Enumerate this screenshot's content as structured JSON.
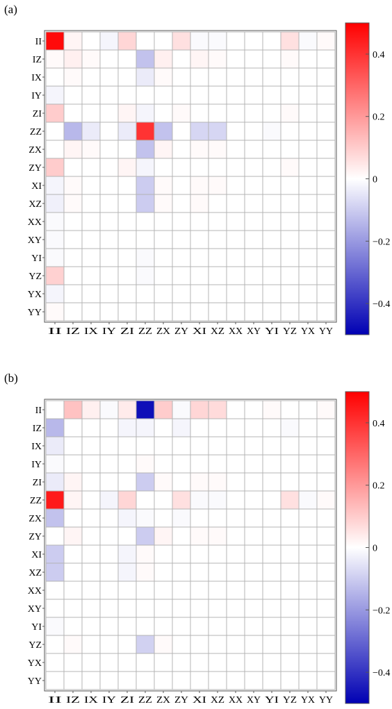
{
  "chart_data": [
    {
      "type": "heatmap",
      "panel_label": "(a)",
      "row_labels": [
        "II",
        "IZ",
        "IX",
        "IY",
        "ZI",
        "ZZ",
        "ZX",
        "ZY",
        "XI",
        "XZ",
        "XX",
        "XY",
        "YI",
        "YZ",
        "YX",
        "YY"
      ],
      "col_labels": [
        "II",
        "IZ",
        "IX",
        "IY",
        "ZI",
        "ZZ",
        "ZX",
        "ZY",
        "XI",
        "XZ",
        "XX",
        "XY",
        "YI",
        "YZ",
        "YX",
        "YY"
      ],
      "values": [
        [
          0.48,
          0.02,
          0.0,
          -0.02,
          0.08,
          0.0,
          0.0,
          0.06,
          -0.01,
          -0.01,
          0.0,
          0.0,
          0.0,
          0.06,
          -0.01,
          0.01
        ],
        [
          0.01,
          0.03,
          0.01,
          0.0,
          0.0,
          -0.12,
          0.03,
          0.0,
          0.02,
          0.01,
          0.0,
          0.0,
          0.0,
          0.01,
          0.0,
          0.0
        ],
        [
          0.0,
          0.01,
          0.0,
          0.0,
          0.0,
          -0.04,
          0.01,
          0.0,
          0.0,
          0.0,
          0.0,
          0.0,
          0.0,
          0.0,
          0.0,
          0.0
        ],
        [
          -0.02,
          0.0,
          0.0,
          0.0,
          0.0,
          0.0,
          0.0,
          0.0,
          0.0,
          0.0,
          0.0,
          0.0,
          0.0,
          0.0,
          0.0,
          0.0
        ],
        [
          0.1,
          0.0,
          0.0,
          0.0,
          0.02,
          -0.02,
          0.0,
          0.01,
          0.0,
          0.0,
          0.0,
          0.0,
          0.0,
          0.01,
          0.0,
          0.0
        ],
        [
          0.0,
          -0.14,
          -0.04,
          0.0,
          -0.04,
          0.4,
          -0.12,
          0.0,
          -0.08,
          -0.08,
          0.0,
          0.0,
          -0.01,
          0.0,
          0.0,
          0.0
        ],
        [
          0.0,
          0.02,
          0.01,
          0.0,
          0.0,
          -0.12,
          0.02,
          0.0,
          0.01,
          0.01,
          0.0,
          0.0,
          0.0,
          0.0,
          0.0,
          0.0
        ],
        [
          0.1,
          0.0,
          0.0,
          0.0,
          0.02,
          -0.02,
          0.0,
          0.0,
          0.0,
          0.0,
          0.0,
          0.0,
          0.0,
          0.01,
          0.0,
          0.0
        ],
        [
          -0.02,
          0.01,
          0.0,
          0.0,
          0.0,
          -0.1,
          0.01,
          0.0,
          0.01,
          0.01,
          0.0,
          0.0,
          0.0,
          0.0,
          0.0,
          0.0
        ],
        [
          -0.03,
          0.01,
          0.0,
          0.0,
          0.0,
          -0.1,
          0.01,
          0.0,
          0.01,
          0.0,
          0.0,
          0.0,
          0.0,
          0.0,
          0.0,
          0.0
        ],
        [
          -0.01,
          0.0,
          0.0,
          0.0,
          0.0,
          0.0,
          0.0,
          0.0,
          0.0,
          0.0,
          0.0,
          0.0,
          0.0,
          0.0,
          0.0,
          0.0
        ],
        [
          -0.01,
          0.0,
          0.0,
          0.0,
          0.0,
          0.0,
          0.0,
          0.0,
          0.0,
          0.0,
          0.0,
          0.0,
          0.0,
          0.0,
          0.0,
          0.0
        ],
        [
          -0.01,
          0.0,
          0.0,
          0.0,
          0.0,
          -0.01,
          0.0,
          0.0,
          0.0,
          0.0,
          0.0,
          0.0,
          0.0,
          0.0,
          0.0,
          0.0
        ],
        [
          0.09,
          0.0,
          0.0,
          0.0,
          0.0,
          -0.01,
          0.0,
          0.0,
          0.0,
          0.0,
          0.0,
          0.0,
          0.0,
          0.0,
          0.0,
          0.0
        ],
        [
          -0.02,
          0.0,
          0.0,
          0.0,
          0.0,
          0.0,
          0.0,
          0.0,
          0.0,
          0.0,
          0.0,
          0.0,
          0.0,
          0.0,
          0.0,
          0.0
        ],
        [
          0.01,
          0.0,
          0.0,
          0.0,
          0.0,
          0.0,
          0.0,
          0.0,
          0.0,
          0.0,
          0.0,
          0.0,
          0.0,
          0.0,
          0.0,
          0.0
        ]
      ],
      "colorbar": {
        "range": [
          -0.5,
          0.5
        ],
        "ticks": [
          0.4,
          0.2,
          0,
          -0.2,
          -0.4
        ],
        "tick_labels": [
          "0.4",
          "0.2",
          "0",
          "−0.2",
          "−0.4"
        ]
      },
      "colormap": {
        "min": "#0000b3",
        "mid": "#ffffff",
        "max": "#ff0000"
      },
      "grid": true
    },
    {
      "type": "heatmap",
      "panel_label": "(b)",
      "row_labels": [
        "II",
        "IZ",
        "IX",
        "IY",
        "ZI",
        "ZZ",
        "ZX",
        "ZY",
        "XI",
        "XZ",
        "XX",
        "XY",
        "YI",
        "YZ",
        "YX",
        "YY"
      ],
      "col_labels": [
        "II",
        "IZ",
        "IX",
        "IY",
        "ZI",
        "ZZ",
        "ZX",
        "ZY",
        "XI",
        "XZ",
        "XX",
        "XY",
        "YI",
        "YZ",
        "YX",
        "YY"
      ],
      "values": [
        [
          0.0,
          0.12,
          0.03,
          -0.01,
          0.04,
          -0.47,
          0.1,
          -0.01,
          0.08,
          0.07,
          0.0,
          0.0,
          0.01,
          0.0,
          0.0,
          0.01
        ],
        [
          -0.14,
          0.0,
          0.0,
          0.0,
          -0.02,
          -0.02,
          0.0,
          -0.02,
          0.0,
          0.0,
          0.0,
          0.0,
          0.0,
          -0.01,
          0.0,
          0.0
        ],
        [
          -0.04,
          0.0,
          0.0,
          0.0,
          0.0,
          0.0,
          0.0,
          0.0,
          0.0,
          0.0,
          0.0,
          0.0,
          0.0,
          0.0,
          0.0,
          0.0
        ],
        [
          -0.01,
          0.0,
          0.0,
          0.0,
          0.0,
          0.01,
          0.0,
          0.0,
          0.0,
          0.0,
          0.0,
          0.0,
          0.0,
          0.0,
          0.0,
          0.0
        ],
        [
          -0.04,
          0.02,
          0.0,
          0.0,
          0.0,
          -0.1,
          0.01,
          0.0,
          0.01,
          0.01,
          0.0,
          0.0,
          0.0,
          0.0,
          0.0,
          0.0
        ],
        [
          0.45,
          0.02,
          0.0,
          -0.02,
          0.08,
          0.0,
          0.0,
          0.06,
          -0.01,
          -0.01,
          0.0,
          0.0,
          0.0,
          0.06,
          -0.01,
          0.01
        ],
        [
          -0.12,
          0.0,
          0.0,
          0.0,
          -0.02,
          -0.01,
          0.0,
          -0.01,
          0.0,
          0.0,
          0.0,
          0.0,
          0.0,
          0.0,
          0.0,
          0.0
        ],
        [
          0.0,
          0.02,
          0.0,
          0.0,
          0.0,
          -0.1,
          0.02,
          0.0,
          0.01,
          0.01,
          0.0,
          0.0,
          0.0,
          0.0,
          0.0,
          0.0
        ],
        [
          -0.1,
          0.0,
          0.0,
          0.0,
          -0.02,
          0.01,
          0.0,
          0.0,
          0.0,
          0.0,
          0.0,
          0.0,
          0.0,
          0.0,
          0.0,
          0.0
        ],
        [
          -0.1,
          0.0,
          0.0,
          0.0,
          -0.02,
          0.01,
          0.0,
          0.0,
          0.0,
          0.0,
          0.0,
          0.0,
          0.0,
          0.0,
          0.0,
          0.0
        ],
        [
          0.0,
          0.0,
          0.0,
          0.0,
          0.0,
          0.0,
          0.0,
          0.0,
          0.0,
          0.0,
          0.0,
          0.0,
          0.0,
          0.0,
          0.0,
          0.0
        ],
        [
          0.0,
          0.0,
          0.0,
          0.0,
          0.0,
          0.0,
          0.0,
          0.0,
          0.0,
          0.0,
          0.0,
          0.0,
          0.0,
          0.0,
          0.0,
          0.0
        ],
        [
          -0.01,
          0.0,
          0.0,
          0.0,
          0.0,
          0.0,
          0.0,
          0.0,
          0.0,
          0.0,
          0.0,
          0.0,
          0.0,
          0.0,
          0.0,
          0.0
        ],
        [
          0.0,
          0.01,
          0.0,
          0.0,
          0.0,
          -0.09,
          0.01,
          0.0,
          0.0,
          0.0,
          0.0,
          0.0,
          0.0,
          0.0,
          0.0,
          0.0
        ],
        [
          0.0,
          0.0,
          0.0,
          0.0,
          0.0,
          0.0,
          0.0,
          0.0,
          0.0,
          0.0,
          0.0,
          0.0,
          0.0,
          0.0,
          0.0,
          0.0
        ],
        [
          0.0,
          0.0,
          0.0,
          0.0,
          0.0,
          0.0,
          0.0,
          0.0,
          0.0,
          0.0,
          0.0,
          0.0,
          0.0,
          0.0,
          0.0,
          0.0
        ]
      ],
      "colorbar": {
        "range": [
          -0.5,
          0.5
        ],
        "ticks": [
          0.4,
          0.2,
          0,
          -0.2,
          -0.4
        ],
        "tick_labels": [
          "0.4",
          "0.2",
          "0",
          "−0.2",
          "−0.4"
        ]
      },
      "colormap": {
        "min": "#0000b3",
        "mid": "#ffffff",
        "max": "#ff0000"
      },
      "grid": true
    }
  ]
}
